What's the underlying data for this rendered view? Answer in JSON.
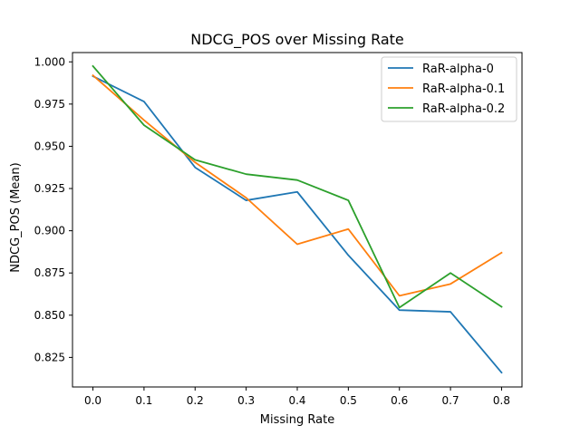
{
  "chart_data": {
    "type": "line",
    "title": "NDCG_POS over Missing Rate",
    "xlabel": "Missing Rate",
    "ylabel": "NDCG_POS (Mean)",
    "x": [
      0.0,
      0.1,
      0.2,
      0.3,
      0.4,
      0.5,
      0.6,
      0.7,
      0.8
    ],
    "xlim": [
      -0.04,
      0.84
    ],
    "ylim": [
      0.8075,
      1.0055
    ],
    "xticks": [
      0.0,
      0.1,
      0.2,
      0.3,
      0.4,
      0.5,
      0.6,
      0.7,
      0.8
    ],
    "xtick_labels": [
      "0.0",
      "0.1",
      "0.2",
      "0.3",
      "0.4",
      "0.5",
      "0.6",
      "0.7",
      "0.8"
    ],
    "yticks": [
      0.825,
      0.85,
      0.875,
      0.9,
      0.925,
      0.95,
      0.975,
      1.0
    ],
    "ytick_labels": [
      "0.825",
      "0.850",
      "0.875",
      "0.900",
      "0.925",
      "0.950",
      "0.975",
      "1.000"
    ],
    "grid": false,
    "legend_position": "top-right",
    "series": [
      {
        "name": "RaR-alpha-0",
        "color": "#1f77b4",
        "values": [
          0.9915,
          0.9765,
          0.9375,
          0.918,
          0.923,
          0.8855,
          0.853,
          0.852,
          0.816
        ]
      },
      {
        "name": "RaR-alpha-0.1",
        "color": "#ff7f0e",
        "values": [
          0.992,
          0.9655,
          0.9405,
          0.9195,
          0.892,
          0.901,
          0.8615,
          0.8685,
          0.887
        ]
      },
      {
        "name": "RaR-alpha-0.2",
        "color": "#2ca02c",
        "values": [
          0.9975,
          0.9625,
          0.942,
          0.9335,
          0.93,
          0.918,
          0.8545,
          0.875,
          0.855
        ]
      }
    ]
  }
}
